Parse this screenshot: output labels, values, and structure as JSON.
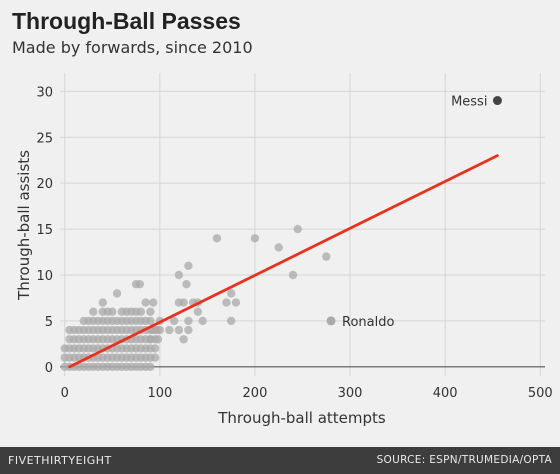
{
  "title": "Through-Ball Passes",
  "subtitle": "Made by forwards, since 2010",
  "footer": {
    "brand": "FIVETHIRTYEIGHT",
    "source": "SOURCE: ESPN/TRUMEDIA/OPTA"
  },
  "colors": {
    "background": "#f0f0f0",
    "grid": "#d6d6d6",
    "points": "#aaaaaa",
    "highlight": "#444444",
    "trend": "#e8321e",
    "footer": "#3d3d3d"
  },
  "chart_data": {
    "type": "scatter",
    "title": "Through-Ball Passes",
    "subtitle": "Made by forwards, since 2010",
    "xlabel": "Through-ball attempts",
    "ylabel": "Through-ball assists",
    "xlim": [
      -5,
      505
    ],
    "ylim": [
      -1,
      32
    ],
    "xticks": [
      0,
      100,
      200,
      300,
      400,
      500
    ],
    "yticks": [
      0,
      5,
      10,
      15,
      20,
      25,
      30
    ],
    "grid": true,
    "points": [
      {
        "x": 0,
        "y": 0
      },
      {
        "x": 5,
        "y": 0
      },
      {
        "x": 10,
        "y": 0
      },
      {
        "x": 15,
        "y": 0
      },
      {
        "x": 20,
        "y": 0
      },
      {
        "x": 25,
        "y": 0
      },
      {
        "x": 30,
        "y": 0
      },
      {
        "x": 35,
        "y": 0
      },
      {
        "x": 40,
        "y": 0
      },
      {
        "x": 45,
        "y": 0
      },
      {
        "x": 50,
        "y": 0
      },
      {
        "x": 55,
        "y": 0
      },
      {
        "x": 60,
        "y": 0
      },
      {
        "x": 65,
        "y": 0
      },
      {
        "x": 70,
        "y": 0
      },
      {
        "x": 75,
        "y": 0
      },
      {
        "x": 80,
        "y": 0
      },
      {
        "x": 85,
        "y": 0
      },
      {
        "x": 90,
        "y": 0
      },
      {
        "x": 0,
        "y": 1
      },
      {
        "x": 5,
        "y": 1
      },
      {
        "x": 10,
        "y": 1
      },
      {
        "x": 15,
        "y": 1
      },
      {
        "x": 20,
        "y": 1
      },
      {
        "x": 25,
        "y": 1
      },
      {
        "x": 30,
        "y": 1
      },
      {
        "x": 35,
        "y": 1
      },
      {
        "x": 40,
        "y": 1
      },
      {
        "x": 45,
        "y": 1
      },
      {
        "x": 50,
        "y": 1
      },
      {
        "x": 55,
        "y": 1
      },
      {
        "x": 60,
        "y": 1
      },
      {
        "x": 65,
        "y": 1
      },
      {
        "x": 70,
        "y": 1
      },
      {
        "x": 75,
        "y": 1
      },
      {
        "x": 80,
        "y": 1
      },
      {
        "x": 85,
        "y": 1
      },
      {
        "x": 90,
        "y": 1
      },
      {
        "x": 95,
        "y": 1
      },
      {
        "x": 0,
        "y": 2
      },
      {
        "x": 5,
        "y": 2
      },
      {
        "x": 10,
        "y": 2
      },
      {
        "x": 15,
        "y": 2
      },
      {
        "x": 20,
        "y": 2
      },
      {
        "x": 25,
        "y": 2
      },
      {
        "x": 30,
        "y": 2
      },
      {
        "x": 35,
        "y": 2
      },
      {
        "x": 40,
        "y": 2
      },
      {
        "x": 45,
        "y": 2
      },
      {
        "x": 50,
        "y": 2
      },
      {
        "x": 55,
        "y": 2
      },
      {
        "x": 60,
        "y": 2
      },
      {
        "x": 65,
        "y": 2
      },
      {
        "x": 70,
        "y": 2
      },
      {
        "x": 75,
        "y": 2
      },
      {
        "x": 80,
        "y": 2
      },
      {
        "x": 85,
        "y": 2
      },
      {
        "x": 90,
        "y": 2
      },
      {
        "x": 95,
        "y": 2
      },
      {
        "x": 5,
        "y": 3
      },
      {
        "x": 10,
        "y": 3
      },
      {
        "x": 15,
        "y": 3
      },
      {
        "x": 20,
        "y": 3
      },
      {
        "x": 25,
        "y": 3
      },
      {
        "x": 30,
        "y": 3
      },
      {
        "x": 35,
        "y": 3
      },
      {
        "x": 40,
        "y": 3
      },
      {
        "x": 45,
        "y": 3
      },
      {
        "x": 50,
        "y": 3
      },
      {
        "x": 55,
        "y": 3
      },
      {
        "x": 60,
        "y": 3
      },
      {
        "x": 65,
        "y": 3
      },
      {
        "x": 70,
        "y": 3
      },
      {
        "x": 75,
        "y": 3
      },
      {
        "x": 80,
        "y": 3
      },
      {
        "x": 85,
        "y": 3
      },
      {
        "x": 90,
        "y": 3
      },
      {
        "x": 95,
        "y": 3
      },
      {
        "x": 5,
        "y": 4
      },
      {
        "x": 10,
        "y": 4
      },
      {
        "x": 15,
        "y": 4
      },
      {
        "x": 20,
        "y": 4
      },
      {
        "x": 25,
        "y": 4
      },
      {
        "x": 30,
        "y": 4
      },
      {
        "x": 35,
        "y": 4
      },
      {
        "x": 40,
        "y": 4
      },
      {
        "x": 45,
        "y": 4
      },
      {
        "x": 50,
        "y": 4
      },
      {
        "x": 55,
        "y": 4
      },
      {
        "x": 60,
        "y": 4
      },
      {
        "x": 65,
        "y": 4
      },
      {
        "x": 70,
        "y": 4
      },
      {
        "x": 75,
        "y": 4
      },
      {
        "x": 80,
        "y": 4
      },
      {
        "x": 85,
        "y": 4
      },
      {
        "x": 90,
        "y": 4
      },
      {
        "x": 95,
        "y": 4
      },
      {
        "x": 20,
        "y": 5
      },
      {
        "x": 25,
        "y": 5
      },
      {
        "x": 30,
        "y": 5
      },
      {
        "x": 35,
        "y": 5
      },
      {
        "x": 40,
        "y": 5
      },
      {
        "x": 45,
        "y": 5
      },
      {
        "x": 50,
        "y": 5
      },
      {
        "x": 55,
        "y": 5
      },
      {
        "x": 60,
        "y": 5
      },
      {
        "x": 65,
        "y": 5
      },
      {
        "x": 70,
        "y": 5
      },
      {
        "x": 75,
        "y": 5
      },
      {
        "x": 80,
        "y": 5
      },
      {
        "x": 85,
        "y": 5
      },
      {
        "x": 90,
        "y": 5
      },
      {
        "x": 30,
        "y": 6
      },
      {
        "x": 40,
        "y": 6
      },
      {
        "x": 45,
        "y": 6
      },
      {
        "x": 50,
        "y": 6
      },
      {
        "x": 60,
        "y": 6
      },
      {
        "x": 65,
        "y": 6
      },
      {
        "x": 70,
        "y": 6
      },
      {
        "x": 75,
        "y": 6
      },
      {
        "x": 80,
        "y": 6
      },
      {
        "x": 90,
        "y": 6
      },
      {
        "x": 40,
        "y": 7
      },
      {
        "x": 85,
        "y": 7
      },
      {
        "x": 93,
        "y": 7
      },
      {
        "x": 55,
        "y": 8
      },
      {
        "x": 75,
        "y": 9
      },
      {
        "x": 79,
        "y": 9
      },
      {
        "x": 90,
        "y": 3
      },
      {
        "x": 98,
        "y": 3
      },
      {
        "x": 92,
        "y": 4
      },
      {
        "x": 97,
        "y": 4
      },
      {
        "x": 100,
        "y": 5
      },
      {
        "x": 100,
        "y": 4
      },
      {
        "x": 110,
        "y": 4
      },
      {
        "x": 120,
        "y": 4
      },
      {
        "x": 125,
        "y": 3
      },
      {
        "x": 130,
        "y": 4
      },
      {
        "x": 115,
        "y": 5
      },
      {
        "x": 130,
        "y": 5
      },
      {
        "x": 120,
        "y": 7
      },
      {
        "x": 125,
        "y": 7
      },
      {
        "x": 135,
        "y": 7
      },
      {
        "x": 140,
        "y": 6
      },
      {
        "x": 145,
        "y": 5
      },
      {
        "x": 128,
        "y": 9
      },
      {
        "x": 120,
        "y": 10
      },
      {
        "x": 130,
        "y": 11
      },
      {
        "x": 140,
        "y": 7
      },
      {
        "x": 160,
        "y": 14
      },
      {
        "x": 170,
        "y": 7
      },
      {
        "x": 175,
        "y": 8
      },
      {
        "x": 175,
        "y": 5
      },
      {
        "x": 180,
        "y": 7
      },
      {
        "x": 200,
        "y": 14
      },
      {
        "x": 225,
        "y": 13
      },
      {
        "x": 240,
        "y": 10
      },
      {
        "x": 245,
        "y": 15
      },
      {
        "x": 275,
        "y": 12
      }
    ],
    "labeled_points": [
      {
        "label": "Messi",
        "x": 455,
        "y": 29
      },
      {
        "label": "Ronaldo",
        "x": 280,
        "y": 5
      }
    ],
    "trend_line": {
      "x": [
        5,
        455
      ],
      "y": [
        0,
        23
      ]
    }
  }
}
